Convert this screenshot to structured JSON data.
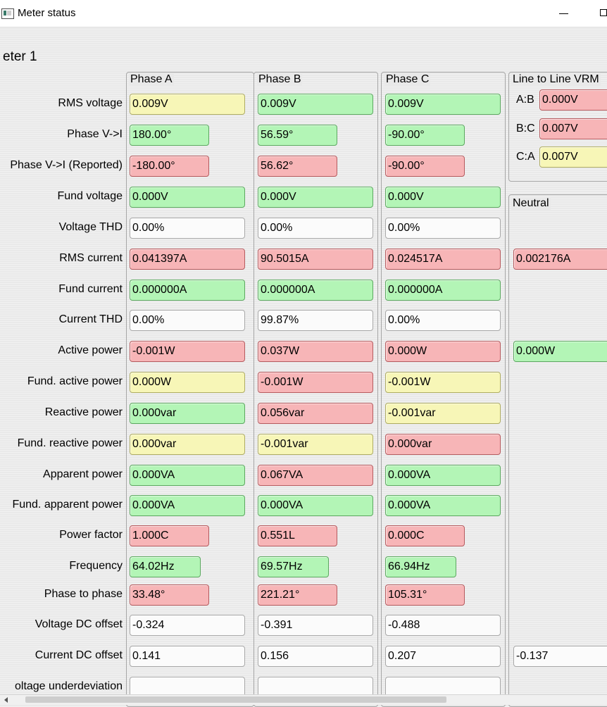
{
  "window": {
    "title": "Meter status"
  },
  "meter_title": "eter 1",
  "groups": {
    "phase_a": "Phase A",
    "phase_b": "Phase B",
    "phase_c": "Phase C",
    "vrm": "Line to Line VRM",
    "neutral": "Neutral"
  },
  "vrm": [
    {
      "label": "A:B",
      "value": "0.000V",
      "status": "r"
    },
    {
      "label": "B:C",
      "value": "0.007V",
      "status": "r"
    },
    {
      "label": "C:A",
      "value": "0.007V",
      "status": "y"
    }
  ],
  "rows": [
    {
      "label": "RMS voltage",
      "a": {
        "v": "0.009V",
        "s": "y"
      },
      "b": {
        "v": "0.009V",
        "s": "g"
      },
      "c": {
        "v": "0.009V",
        "s": "g"
      }
    },
    {
      "label": "Phase V->I",
      "short": true,
      "a": {
        "v": "180.00°",
        "s": "g"
      },
      "b": {
        "v": "56.59°",
        "s": "g"
      },
      "c": {
        "v": "-90.00°",
        "s": "g"
      }
    },
    {
      "label": "Phase V->I (Reported)",
      "short": true,
      "a": {
        "v": "-180.00°",
        "s": "r"
      },
      "b": {
        "v": "56.62°",
        "s": "r"
      },
      "c": {
        "v": "-90.00°",
        "s": "r"
      }
    },
    {
      "label": "Fund voltage",
      "a": {
        "v": "0.000V",
        "s": "g"
      },
      "b": {
        "v": "0.000V",
        "s": "g"
      },
      "c": {
        "v": "0.000V",
        "s": "g"
      }
    },
    {
      "label": "Voltage THD",
      "a": {
        "v": "0.00%",
        "s": "w"
      },
      "b": {
        "v": "0.00%",
        "s": "w"
      },
      "c": {
        "v": "0.00%",
        "s": "w"
      }
    },
    {
      "label": "RMS current",
      "a": {
        "v": "0.041397A",
        "s": "r"
      },
      "b": {
        "v": "90.5015A",
        "s": "r"
      },
      "c": {
        "v": "0.024517A",
        "s": "r"
      },
      "n": {
        "v": "0.002176A",
        "s": "r"
      }
    },
    {
      "label": "Fund current",
      "a": {
        "v": "0.000000A",
        "s": "g"
      },
      "b": {
        "v": "0.000000A",
        "s": "g"
      },
      "c": {
        "v": "0.000000A",
        "s": "g"
      }
    },
    {
      "label": "Current THD",
      "a": {
        "v": "0.00%",
        "s": "w"
      },
      "b": {
        "v": "99.87%",
        "s": "w"
      },
      "c": {
        "v": "0.00%",
        "s": "w"
      }
    },
    {
      "label": "Active power",
      "a": {
        "v": "-0.001W",
        "s": "r"
      },
      "b": {
        "v": "0.037W",
        "s": "r"
      },
      "c": {
        "v": "0.000W",
        "s": "r"
      },
      "n": {
        "v": "0.000W",
        "s": "g"
      }
    },
    {
      "label": "Fund. active power",
      "a": {
        "v": "0.000W",
        "s": "y"
      },
      "b": {
        "v": "-0.001W",
        "s": "r"
      },
      "c": {
        "v": "-0.001W",
        "s": "y"
      }
    },
    {
      "label": "Reactive power",
      "a": {
        "v": "0.000var",
        "s": "g"
      },
      "b": {
        "v": "0.056var",
        "s": "r"
      },
      "c": {
        "v": "-0.001var",
        "s": "y"
      }
    },
    {
      "label": "Fund. reactive power",
      "a": {
        "v": "0.000var",
        "s": "y"
      },
      "b": {
        "v": "-0.001var",
        "s": "y"
      },
      "c": {
        "v": "0.000var",
        "s": "r"
      }
    },
    {
      "label": "Apparent power",
      "a": {
        "v": "0.000VA",
        "s": "g"
      },
      "b": {
        "v": "0.067VA",
        "s": "r"
      },
      "c": {
        "v": "0.000VA",
        "s": "g"
      }
    },
    {
      "label": "Fund. apparent power",
      "a": {
        "v": "0.000VA",
        "s": "g"
      },
      "b": {
        "v": "0.000VA",
        "s": "g"
      },
      "c": {
        "v": "0.000VA",
        "s": "g"
      }
    },
    {
      "label": "Power factor",
      "short": true,
      "a": {
        "v": "1.000C",
        "s": "r"
      },
      "b": {
        "v": "0.551L",
        "s": "r"
      },
      "c": {
        "v": "0.000C",
        "s": "r"
      }
    },
    {
      "label": "Frequency",
      "shorter": true,
      "a": {
        "v": "64.02Hz",
        "s": "g"
      },
      "b": {
        "v": "69.57Hz",
        "s": "g"
      },
      "c": {
        "v": "66.94Hz",
        "s": "g"
      }
    },
    {
      "label": "Phase to phase",
      "short": true,
      "a": {
        "v": "33.48°",
        "s": "r"
      },
      "b": {
        "v": "221.21°",
        "s": "r"
      },
      "c": {
        "v": "105.31°",
        "s": "r"
      }
    },
    {
      "label": "Voltage DC offset",
      "a": {
        "v": "-0.324",
        "s": "w"
      },
      "b": {
        "v": "-0.391",
        "s": "w"
      },
      "c": {
        "v": "-0.488",
        "s": "w"
      }
    },
    {
      "label": "Current DC offset",
      "a": {
        "v": "0.141",
        "s": "w"
      },
      "b": {
        "v": "0.156",
        "s": "w"
      },
      "c": {
        "v": "0.207",
        "s": "w"
      },
      "n": {
        "v": "-0.137",
        "s": "w"
      }
    },
    {
      "label": "oltage underdeviation",
      "a": {
        "v": "",
        "s": "w"
      },
      "b": {
        "v": "",
        "s": "w"
      },
      "c": {
        "v": "",
        "s": "w"
      }
    }
  ]
}
